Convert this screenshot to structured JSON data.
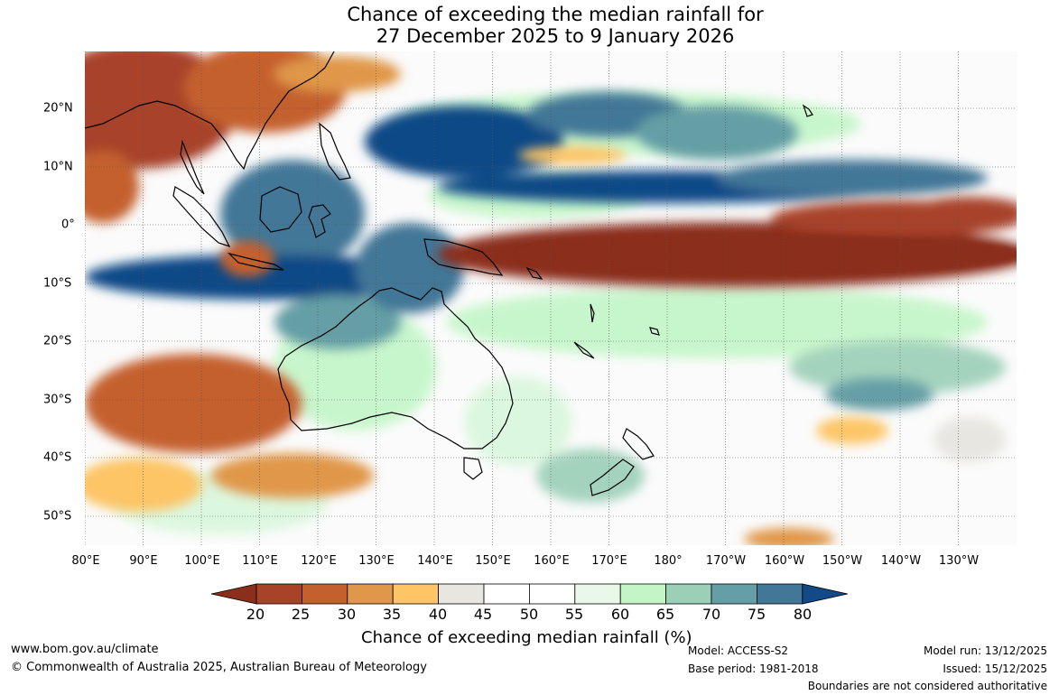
{
  "title": {
    "line1": "Chance of exceeding the median rainfall for",
    "line2": "27 December 2025 to 9 January 2026"
  },
  "axes": {
    "lon_labels": [
      "80°E",
      "90°E",
      "100°E",
      "110°E",
      "120°E",
      "130°E",
      "140°E",
      "150°E",
      "160°E",
      "170°E",
      "180°",
      "170°W",
      "160°W",
      "150°W",
      "140°W",
      "130°W"
    ],
    "lat_labels": [
      "20°N",
      "10°N",
      "0°",
      "10°S",
      "20°S",
      "30°S",
      "40°S",
      "50°S"
    ]
  },
  "colorbar": {
    "title": "Chance of exceeding median rainfall (%)",
    "ticks": [
      "20",
      "25",
      "30",
      "35",
      "40",
      "45",
      "50",
      "55",
      "60",
      "65",
      "70",
      "75",
      "80"
    ],
    "colors": [
      "#8b2f1c",
      "#a8432a",
      "#c4602e",
      "#e0974a",
      "#fdc566",
      "#e8e6e1",
      "#ffffff",
      "#ffffff",
      "#e9f8e9",
      "#c3f6c7",
      "#9bcfb7",
      "#659fa5",
      "#437797",
      "#114a86"
    ]
  },
  "footer": {
    "website": "www.bom.gov.au/climate",
    "copyright": "© Commonwealth of Australia 2025, Australian Bureau of Meteorology",
    "model": "Model: ACCESS-S2",
    "base_period": "Base period: 1981-2018",
    "model_run": "Model run: 13/12/2025",
    "issued": "Issued: 15/12/2025",
    "boundaries": "Boundaries are not considered authoritative"
  }
}
